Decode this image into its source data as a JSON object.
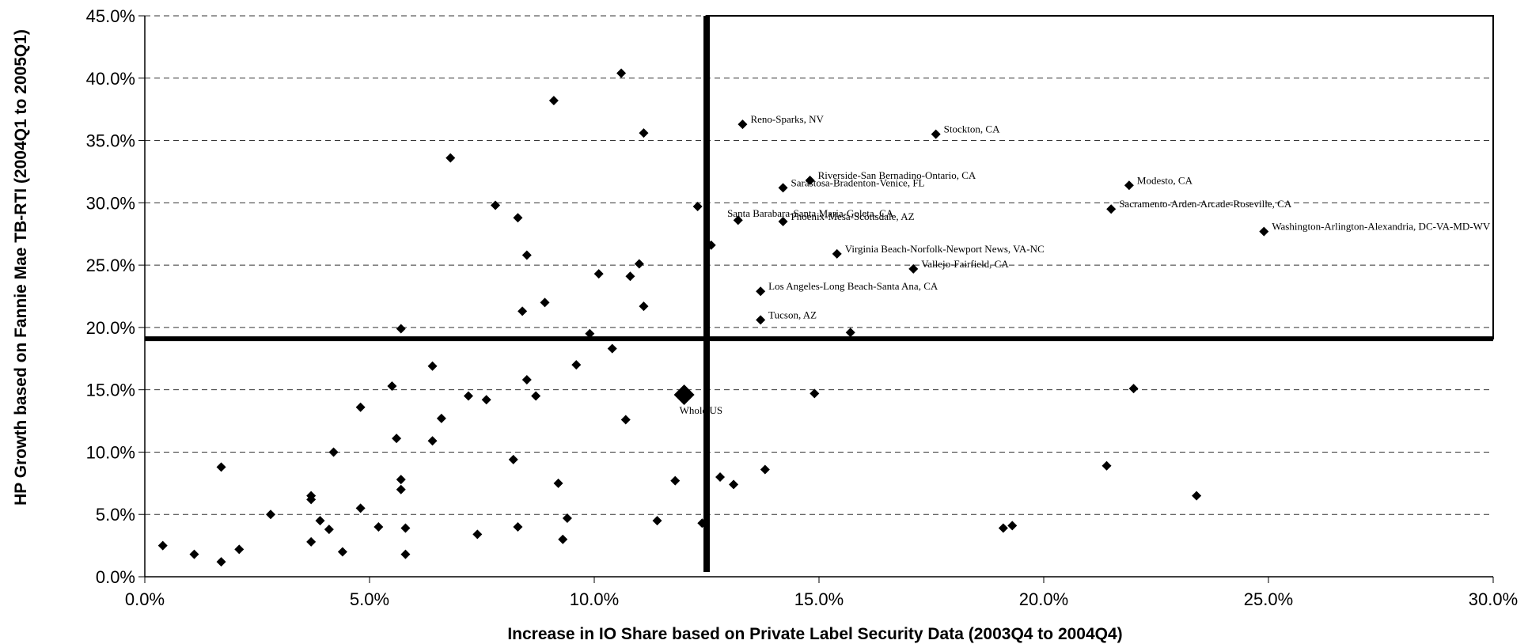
{
  "chart_data": {
    "type": "scatter",
    "xlabel": "Increase in IO Share based on Private Label Security Data (2003Q4 to 2004Q4)",
    "ylabel": "HP Growth based on Fannie Mae TB-RTI (2004Q1 to 2005Q1)",
    "xlim": [
      0,
      0.3
    ],
    "ylim": [
      0,
      0.45
    ],
    "x_ticks": [
      "0.0%",
      "5.0%",
      "10.0%",
      "15.0%",
      "20.0%",
      "25.0%",
      "30.0%"
    ],
    "y_ticks": [
      "0.0%",
      "5.0%",
      "10.0%",
      "15.0%",
      "20.0%",
      "25.0%",
      "30.0%",
      "35.0%",
      "40.0%",
      "45.0%"
    ],
    "grid": "horizontal dashed",
    "reference_lines": {
      "x": 0.125,
      "y": 0.191
    },
    "highlight_box": {
      "x": [
        0.125,
        0.3
      ],
      "y": [
        0.191,
        0.45
      ]
    },
    "series": [
      {
        "points": [
          {
            "x": 0.004,
            "y": 0.025
          },
          {
            "x": 0.011,
            "y": 0.018
          },
          {
            "x": 0.017,
            "y": 0.012
          },
          {
            "x": 0.017,
            "y": 0.088
          },
          {
            "x": 0.021,
            "y": 0.022
          },
          {
            "x": 0.028,
            "y": 0.05
          },
          {
            "x": 0.037,
            "y": 0.028
          },
          {
            "x": 0.037,
            "y": 0.062
          },
          {
            "x": 0.037,
            "y": 0.065
          },
          {
            "x": 0.039,
            "y": 0.045
          },
          {
            "x": 0.041,
            "y": 0.038
          },
          {
            "x": 0.042,
            "y": 0.1
          },
          {
            "x": 0.044,
            "y": 0.02
          },
          {
            "x": 0.048,
            "y": 0.136
          },
          {
            "x": 0.048,
            "y": 0.055
          },
          {
            "x": 0.052,
            "y": 0.04
          },
          {
            "x": 0.055,
            "y": 0.153
          },
          {
            "x": 0.056,
            "y": 0.111
          },
          {
            "x": 0.057,
            "y": 0.07
          },
          {
            "x": 0.057,
            "y": 0.078
          },
          {
            "x": 0.057,
            "y": 0.199
          },
          {
            "x": 0.058,
            "y": 0.039
          },
          {
            "x": 0.058,
            "y": 0.018
          },
          {
            "x": 0.064,
            "y": 0.169
          },
          {
            "x": 0.064,
            "y": 0.109
          },
          {
            "x": 0.066,
            "y": 0.127
          },
          {
            "x": 0.068,
            "y": 0.336
          },
          {
            "x": 0.072,
            "y": 0.145
          },
          {
            "x": 0.074,
            "y": 0.034
          },
          {
            "x": 0.076,
            "y": 0.142
          },
          {
            "x": 0.078,
            "y": 0.298
          },
          {
            "x": 0.082,
            "y": 0.094
          },
          {
            "x": 0.083,
            "y": 0.288
          },
          {
            "x": 0.083,
            "y": 0.04
          },
          {
            "x": 0.084,
            "y": 0.213
          },
          {
            "x": 0.085,
            "y": 0.158
          },
          {
            "x": 0.085,
            "y": 0.258
          },
          {
            "x": 0.087,
            "y": 0.145
          },
          {
            "x": 0.089,
            "y": 0.22
          },
          {
            "x": 0.091,
            "y": 0.382
          },
          {
            "x": 0.092,
            "y": 0.075
          },
          {
            "x": 0.093,
            "y": 0.03
          },
          {
            "x": 0.094,
            "y": 0.047
          },
          {
            "x": 0.096,
            "y": 0.17
          },
          {
            "x": 0.099,
            "y": 0.195
          },
          {
            "x": 0.101,
            "y": 0.243
          },
          {
            "x": 0.104,
            "y": 0.183
          },
          {
            "x": 0.106,
            "y": 0.404
          },
          {
            "x": 0.107,
            "y": 0.126
          },
          {
            "x": 0.108,
            "y": 0.241
          },
          {
            "x": 0.11,
            "y": 0.251
          },
          {
            "x": 0.111,
            "y": 0.356
          },
          {
            "x": 0.111,
            "y": 0.217
          },
          {
            "x": 0.114,
            "y": 0.045
          },
          {
            "x": 0.118,
            "y": 0.077
          },
          {
            "x": 0.123,
            "y": 0.297
          },
          {
            "x": 0.124,
            "y": 0.043
          },
          {
            "x": 0.126,
            "y": 0.266
          },
          {
            "x": 0.128,
            "y": 0.08
          },
          {
            "x": 0.131,
            "y": 0.074
          },
          {
            "x": 0.132,
            "y": 0.286
          },
          {
            "x": 0.138,
            "y": 0.086
          },
          {
            "x": 0.149,
            "y": 0.147
          },
          {
            "x": 0.157,
            "y": 0.196
          },
          {
            "x": 0.191,
            "y": 0.039
          },
          {
            "x": 0.193,
            "y": 0.041
          },
          {
            "x": 0.214,
            "y": 0.089
          },
          {
            "x": 0.22,
            "y": 0.151
          },
          {
            "x": 0.234,
            "y": 0.065
          },
          {
            "x": 0.133,
            "y": 0.363,
            "label": "Reno-Sparks, NV"
          },
          {
            "x": 0.176,
            "y": 0.355,
            "label": "Stockton, CA"
          },
          {
            "x": 0.148,
            "y": 0.318,
            "label": "Riverside-San Bernadino-Ontario, CA"
          },
          {
            "x": 0.142,
            "y": 0.312,
            "label": "Sarastosa-Bradenton-Venice, FL"
          },
          {
            "x": 0.219,
            "y": 0.314,
            "label": "Modesto, CA"
          },
          {
            "x": 0.215,
            "y": 0.295,
            "label": "Sacramento-Arden-Arcade-Roseville, CA"
          },
          {
            "x": 0.142,
            "y": 0.285,
            "label": "Phoenix-Mesa-Scottsdale, AZ"
          },
          {
            "x": 0.249,
            "y": 0.277,
            "label": "Washington-Arlington-Alexandria, DC-VA-MD-WV"
          },
          {
            "x": 0.154,
            "y": 0.259,
            "label": "Virginia Beach-Norfolk-Newport News, VA-NC"
          },
          {
            "x": 0.171,
            "y": 0.247,
            "label": "Vallejo-Fairfield, CA"
          },
          {
            "x": 0.137,
            "y": 0.229,
            "label": "Los Angeles-Long Beach-Santa Ana, CA"
          },
          {
            "x": 0.137,
            "y": 0.206,
            "label": "Tucson, AZ"
          }
        ]
      }
    ],
    "extra_labels": [
      {
        "x": 0.131,
        "y": 0.292,
        "text": "Santa Barabara-Santa Maria-Goleta, CA"
      }
    ],
    "highlight_point": {
      "x": 0.12,
      "y": 0.146,
      "label": "Whole US"
    }
  }
}
